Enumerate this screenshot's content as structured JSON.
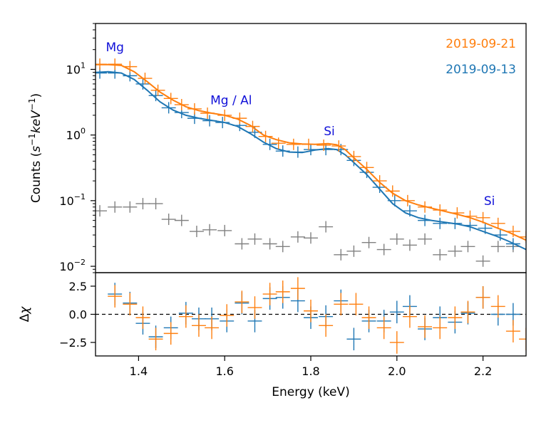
{
  "chart_data": [
    {
      "type": "scatter",
      "panel": "top",
      "title": "",
      "xlabel": "",
      "ylabel": "Counts (s⁻¹keV⁻¹)",
      "ylabel_parts": {
        "pre": "Counts (",
        "s": "s",
        "s_exp": "−1",
        "kev": "keV",
        "kev_exp": "−1",
        "post": ")"
      },
      "yscale": "log",
      "xlim": [
        1.3,
        2.3
      ],
      "ylim": [
        0.008,
        50
      ],
      "grid": false,
      "legend_position": "top-right",
      "yticks": [
        {
          "value": 10,
          "base": "10",
          "exp": "1"
        },
        {
          "value": 1,
          "base": "10",
          "exp": "0"
        },
        {
          "value": 0.1,
          "base": "10",
          "exp": "−1"
        },
        {
          "value": 0.01,
          "base": "10",
          "exp": "−2"
        }
      ],
      "annotations": [
        {
          "text": "Mg",
          "x": 1.345,
          "y": 22
        },
        {
          "text": "Mg / Al",
          "x": 1.615,
          "y": 3.4
        },
        {
          "text": "Si",
          "x": 1.843,
          "y": 1.15
        },
        {
          "text": "Si",
          "x": 2.215,
          "y": 0.1
        }
      ],
      "series": [
        {
          "name": "2019-09-21",
          "color": "#ff7f0e",
          "model": [
            [
              1.3,
              11.8
            ],
            [
              1.33,
              11.8
            ],
            [
              1.36,
              11.5
            ],
            [
              1.39,
              9.2
            ],
            [
              1.42,
              6.5
            ],
            [
              1.45,
              4.5
            ],
            [
              1.48,
              3.4
            ],
            [
              1.51,
              2.7
            ],
            [
              1.54,
              2.35
            ],
            [
              1.57,
              2.15
            ],
            [
              1.6,
              2.0
            ],
            [
              1.63,
              1.75
            ],
            [
              1.66,
              1.4
            ],
            [
              1.69,
              1.0
            ],
            [
              1.72,
              0.85
            ],
            [
              1.75,
              0.76
            ],
            [
              1.78,
              0.73
            ],
            [
              1.81,
              0.72
            ],
            [
              1.84,
              0.74
            ],
            [
              1.86,
              0.71
            ],
            [
              1.88,
              0.6
            ],
            [
              1.9,
              0.45
            ],
            [
              1.93,
              0.3
            ],
            [
              1.96,
              0.19
            ],
            [
              1.99,
              0.13
            ],
            [
              2.02,
              0.1
            ],
            [
              2.05,
              0.086
            ],
            [
              2.08,
              0.077
            ],
            [
              2.11,
              0.069
            ],
            [
              2.14,
              0.062
            ],
            [
              2.17,
              0.055
            ],
            [
              2.2,
              0.047
            ],
            [
              2.23,
              0.039
            ],
            [
              2.26,
              0.033
            ],
            [
              2.3,
              0.025
            ]
          ],
          "data": [
            [
              1.31,
              12.0
            ],
            [
              1.345,
              12.0
            ],
            [
              1.38,
              11.0
            ],
            [
              1.415,
              7.3
            ],
            [
              1.445,
              4.8
            ],
            [
              1.475,
              3.6
            ],
            [
              1.5,
              2.9
            ],
            [
              1.53,
              2.5
            ],
            [
              1.56,
              2.15
            ],
            [
              1.6,
              2.0
            ],
            [
              1.635,
              1.8
            ],
            [
              1.665,
              1.35
            ],
            [
              1.695,
              0.95
            ],
            [
              1.725,
              0.75
            ],
            [
              1.76,
              0.72
            ],
            [
              1.795,
              0.72
            ],
            [
              1.83,
              0.7
            ],
            [
              1.865,
              0.68
            ],
            [
              1.9,
              0.47
            ],
            [
              1.93,
              0.32
            ],
            [
              1.96,
              0.2
            ],
            [
              1.99,
              0.14
            ],
            [
              2.025,
              0.1
            ],
            [
              2.065,
              0.08
            ],
            [
              2.1,
              0.072
            ],
            [
              2.14,
              0.065
            ],
            [
              2.17,
              0.058
            ],
            [
              2.2,
              0.055
            ],
            [
              2.235,
              0.045
            ],
            [
              2.27,
              0.034
            ],
            [
              2.3,
              0.028
            ]
          ]
        },
        {
          "name": "2019-09-13",
          "color": "#1f77b4",
          "model": [
            [
              1.3,
              9.0
            ],
            [
              1.33,
              9.2
            ],
            [
              1.36,
              8.8
            ],
            [
              1.39,
              7.0
            ],
            [
              1.42,
              4.8
            ],
            [
              1.45,
              3.2
            ],
            [
              1.48,
              2.4
            ],
            [
              1.51,
              2.0
            ],
            [
              1.54,
              1.8
            ],
            [
              1.57,
              1.67
            ],
            [
              1.6,
              1.55
            ],
            [
              1.63,
              1.35
            ],
            [
              1.66,
              1.05
            ],
            [
              1.69,
              0.78
            ],
            [
              1.72,
              0.62
            ],
            [
              1.75,
              0.55
            ],
            [
              1.78,
              0.54
            ],
            [
              1.81,
              0.59
            ],
            [
              1.84,
              0.62
            ],
            [
              1.86,
              0.6
            ],
            [
              1.88,
              0.5
            ],
            [
              1.9,
              0.38
            ],
            [
              1.93,
              0.25
            ],
            [
              1.96,
              0.15
            ],
            [
              1.99,
              0.09
            ],
            [
              2.02,
              0.065
            ],
            [
              2.05,
              0.055
            ],
            [
              2.08,
              0.05
            ],
            [
              2.11,
              0.047
            ],
            [
              2.14,
              0.044
            ],
            [
              2.17,
              0.04
            ],
            [
              2.2,
              0.034
            ],
            [
              2.23,
              0.029
            ],
            [
              2.26,
              0.024
            ],
            [
              2.3,
              0.018
            ]
          ],
          "data": [
            [
              1.31,
              8.8
            ],
            [
              1.345,
              8.8
            ],
            [
              1.38,
              8.0
            ],
            [
              1.41,
              6.0
            ],
            [
              1.44,
              4.0
            ],
            [
              1.47,
              2.6
            ],
            [
              1.5,
              2.2
            ],
            [
              1.53,
              1.8
            ],
            [
              1.565,
              1.65
            ],
            [
              1.595,
              1.55
            ],
            [
              1.635,
              1.4
            ],
            [
              1.67,
              1.1
            ],
            [
              1.705,
              0.72
            ],
            [
              1.735,
              0.57
            ],
            [
              1.77,
              0.55
            ],
            [
              1.8,
              0.6
            ],
            [
              1.835,
              0.6
            ],
            [
              1.87,
              0.6
            ],
            [
              1.9,
              0.41
            ],
            [
              1.93,
              0.27
            ],
            [
              1.96,
              0.16
            ],
            [
              1.995,
              0.1
            ],
            [
              2.03,
              0.07
            ],
            [
              2.065,
              0.05
            ],
            [
              2.1,
              0.045
            ],
            [
              2.135,
              0.045
            ],
            [
              2.17,
              0.042
            ],
            [
              2.205,
              0.038
            ],
            [
              2.24,
              0.03
            ],
            [
              2.27,
              0.022
            ]
          ]
        },
        {
          "name": "",
          "color": "#808080",
          "data": [
            [
              1.31,
              0.07
            ],
            [
              1.345,
              0.08
            ],
            [
              1.38,
              0.08
            ],
            [
              1.41,
              0.09
            ],
            [
              1.44,
              0.09
            ],
            [
              1.47,
              0.052
            ],
            [
              1.5,
              0.05
            ],
            [
              1.535,
              0.034
            ],
            [
              1.565,
              0.036
            ],
            [
              1.6,
              0.035
            ],
            [
              1.64,
              0.022
            ],
            [
              1.67,
              0.026
            ],
            [
              1.705,
              0.022
            ],
            [
              1.735,
              0.02
            ],
            [
              1.77,
              0.028
            ],
            [
              1.8,
              0.027
            ],
            [
              1.835,
              0.04
            ],
            [
              1.87,
              0.015
            ],
            [
              1.9,
              0.017
            ],
            [
              1.935,
              0.023
            ],
            [
              1.97,
              0.018
            ],
            [
              2.0,
              0.026
            ],
            [
              2.03,
              0.021
            ],
            [
              2.065,
              0.026
            ],
            [
              2.1,
              0.015
            ],
            [
              2.135,
              0.017
            ],
            [
              2.165,
              0.02
            ],
            [
              2.2,
              0.012
            ],
            [
              2.235,
              0.02
            ],
            [
              2.27,
              0.02
            ]
          ]
        }
      ]
    },
    {
      "type": "scatter",
      "panel": "bottom",
      "title": "",
      "xlabel": "Energy (keV)",
      "ylabel": "Δχ",
      "ylabel_parts": {
        "delta": "Δ",
        "chi": "χ"
      },
      "xlim": [
        1.3,
        2.3
      ],
      "ylim": [
        -3.7,
        3.7
      ],
      "grid": false,
      "xticks": [
        {
          "value": 1.4,
          "label": "1.4"
        },
        {
          "value": 1.6,
          "label": "1.6"
        },
        {
          "value": 1.8,
          "label": "1.8"
        },
        {
          "value": 2.0,
          "label": "2.0"
        },
        {
          "value": 2.2,
          "label": "2.2"
        }
      ],
      "yticks": [
        {
          "value": 2.5,
          "label": "2.5"
        },
        {
          "value": 0.0,
          "label": "0.0"
        },
        {
          "value": -2.5,
          "label": "−2.5"
        }
      ],
      "zero_line": 0,
      "series": [
        {
          "name": "2019-09-21",
          "color": "#ff7f0e",
          "data": [
            [
              1.345,
              1.6
            ],
            [
              1.38,
              0.9
            ],
            [
              1.41,
              -0.3
            ],
            [
              1.44,
              -2.2
            ],
            [
              1.475,
              -1.7
            ],
            [
              1.51,
              -0.2
            ],
            [
              1.54,
              -1.0
            ],
            [
              1.57,
              -1.2
            ],
            [
              1.605,
              -0.1
            ],
            [
              1.64,
              1.1
            ],
            [
              1.67,
              0.6
            ],
            [
              1.705,
              1.8
            ],
            [
              1.735,
              2.0
            ],
            [
              1.77,
              2.3
            ],
            [
              1.8,
              0.3
            ],
            [
              1.835,
              -1.0
            ],
            [
              1.87,
              0.9
            ],
            [
              1.905,
              0.9
            ],
            [
              1.935,
              -0.3
            ],
            [
              1.97,
              -1.2
            ],
            [
              2.0,
              -2.5
            ],
            [
              2.03,
              -0.2
            ],
            [
              2.065,
              -1.1
            ],
            [
              2.1,
              -1.2
            ],
            [
              2.135,
              -0.3
            ],
            [
              2.165,
              0.2
            ],
            [
              2.2,
              1.5
            ],
            [
              2.235,
              0.7
            ],
            [
              2.27,
              -1.5
            ],
            [
              2.3,
              -2.2
            ]
          ]
        },
        {
          "name": "2019-09-13",
          "color": "#1f77b4",
          "data": [
            [
              1.345,
              1.8
            ],
            [
              1.38,
              1.0
            ],
            [
              1.41,
              -0.8
            ],
            [
              1.44,
              -2.0
            ],
            [
              1.475,
              -1.2
            ],
            [
              1.51,
              0.1
            ],
            [
              1.54,
              -0.4
            ],
            [
              1.57,
              -0.4
            ],
            [
              1.605,
              -0.6
            ],
            [
              1.64,
              1.0
            ],
            [
              1.67,
              -0.6
            ],
            [
              1.705,
              1.4
            ],
            [
              1.735,
              1.5
            ],
            [
              1.77,
              1.2
            ],
            [
              1.8,
              -0.3
            ],
            [
              1.835,
              -0.2
            ],
            [
              1.87,
              1.2
            ],
            [
              1.9,
              -2.2
            ],
            [
              1.935,
              -0.6
            ],
            [
              1.97,
              -0.6
            ],
            [
              2.0,
              0.2
            ],
            [
              2.03,
              0.7
            ],
            [
              2.065,
              -1.3
            ],
            [
              2.1,
              -0.3
            ],
            [
              2.135,
              -0.7
            ],
            [
              2.165,
              0.1
            ],
            [
              2.2,
              1.5
            ],
            [
              2.235,
              0.0
            ],
            [
              2.27,
              0.0
            ]
          ]
        }
      ]
    }
  ]
}
